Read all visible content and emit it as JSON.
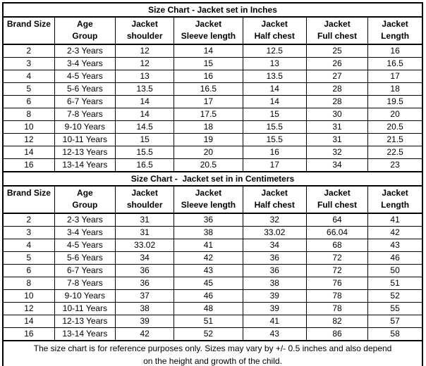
{
  "colors": {
    "border": "#000000",
    "background": "#ffffff",
    "text": "#000000"
  },
  "table": {
    "sections": [
      {
        "title": "Size Chart - Jacket set in Inches",
        "headers": [
          [
            "Brand Size",
            ""
          ],
          [
            "Age",
            "Group"
          ],
          [
            "Jacket",
            "shoulder"
          ],
          [
            "Jacket",
            "Sleeve length"
          ],
          [
            "Jacket",
            "Half chest"
          ],
          [
            "Jacket",
            "Full chest"
          ],
          [
            "Jacket",
            "Length"
          ]
        ],
        "rows": [
          [
            "2",
            "2-3 Years",
            "12",
            "14",
            "12.5",
            "25",
            "16"
          ],
          [
            "3",
            "3-4 Years",
            "12",
            "15",
            "13",
            "26",
            "16.5"
          ],
          [
            "4",
            "4-5 Years",
            "13",
            "16",
            "13.5",
            "27",
            "17"
          ],
          [
            "5",
            "5-6 Years",
            "13.5",
            "16.5",
            "14",
            "28",
            "18"
          ],
          [
            "6",
            "6-7 Years",
            "14",
            "17",
            "14",
            "28",
            "19.5"
          ],
          [
            "8",
            "7-8 Years",
            "14",
            "17.5",
            "15",
            "30",
            "20"
          ],
          [
            "10",
            "9-10 Years",
            "14.5",
            "18",
            "15.5",
            "31",
            "20.5"
          ],
          [
            "12",
            "10-11 Years",
            "15",
            "19",
            "15.5",
            "31",
            "21.5"
          ],
          [
            "14",
            "12-13 Years",
            "15.5",
            "20",
            "16",
            "32",
            "22.5"
          ],
          [
            "16",
            "13-14 Years",
            "16.5",
            "20.5",
            "17",
            "34",
            "23"
          ]
        ]
      },
      {
        "title": "Size Chart -  Jacket set in in Centimeters",
        "headers": [
          [
            "Brand Size",
            ""
          ],
          [
            "Age",
            "Group"
          ],
          [
            "Jacket",
            "shoulder"
          ],
          [
            "Jacket",
            "Sleeve length"
          ],
          [
            "Jacket",
            "Half chest"
          ],
          [
            "Jacket",
            "Full chest"
          ],
          [
            "Jacket",
            "Length"
          ]
        ],
        "rows": [
          [
            "2",
            "2-3 Years",
            "31",
            "36",
            "32",
            "64",
            "41"
          ],
          [
            "3",
            "3-4 Years",
            "31",
            "38",
            "33.02",
            "66.04",
            "42"
          ],
          [
            "4",
            "4-5 Years",
            "33.02",
            "41",
            "34",
            "68",
            "43"
          ],
          [
            "5",
            "5-6 Years",
            "34",
            "42",
            "36",
            "72",
            "46"
          ],
          [
            "6",
            "6-7 Years",
            "36",
            "43",
            "36",
            "72",
            "50"
          ],
          [
            "8",
            "7-8 Years",
            "36",
            "45",
            "38",
            "76",
            "51"
          ],
          [
            "10",
            "9-10 Years",
            "37",
            "46",
            "39",
            "78",
            "52"
          ],
          [
            "12",
            "10-11 Years",
            "38",
            "48",
            "39",
            "78",
            "55"
          ],
          [
            "14",
            "12-13 Years",
            "39",
            "51",
            "41",
            "82",
            "57"
          ],
          [
            "16",
            "13-14 Years",
            "42",
            "52",
            "43",
            "86",
            "58"
          ]
        ]
      }
    ],
    "footer": [
      "The size chart is for reference purposes only. Sizes may vary by +/- 0.5 inches and also depend",
      "on the height and growth of the child."
    ]
  }
}
